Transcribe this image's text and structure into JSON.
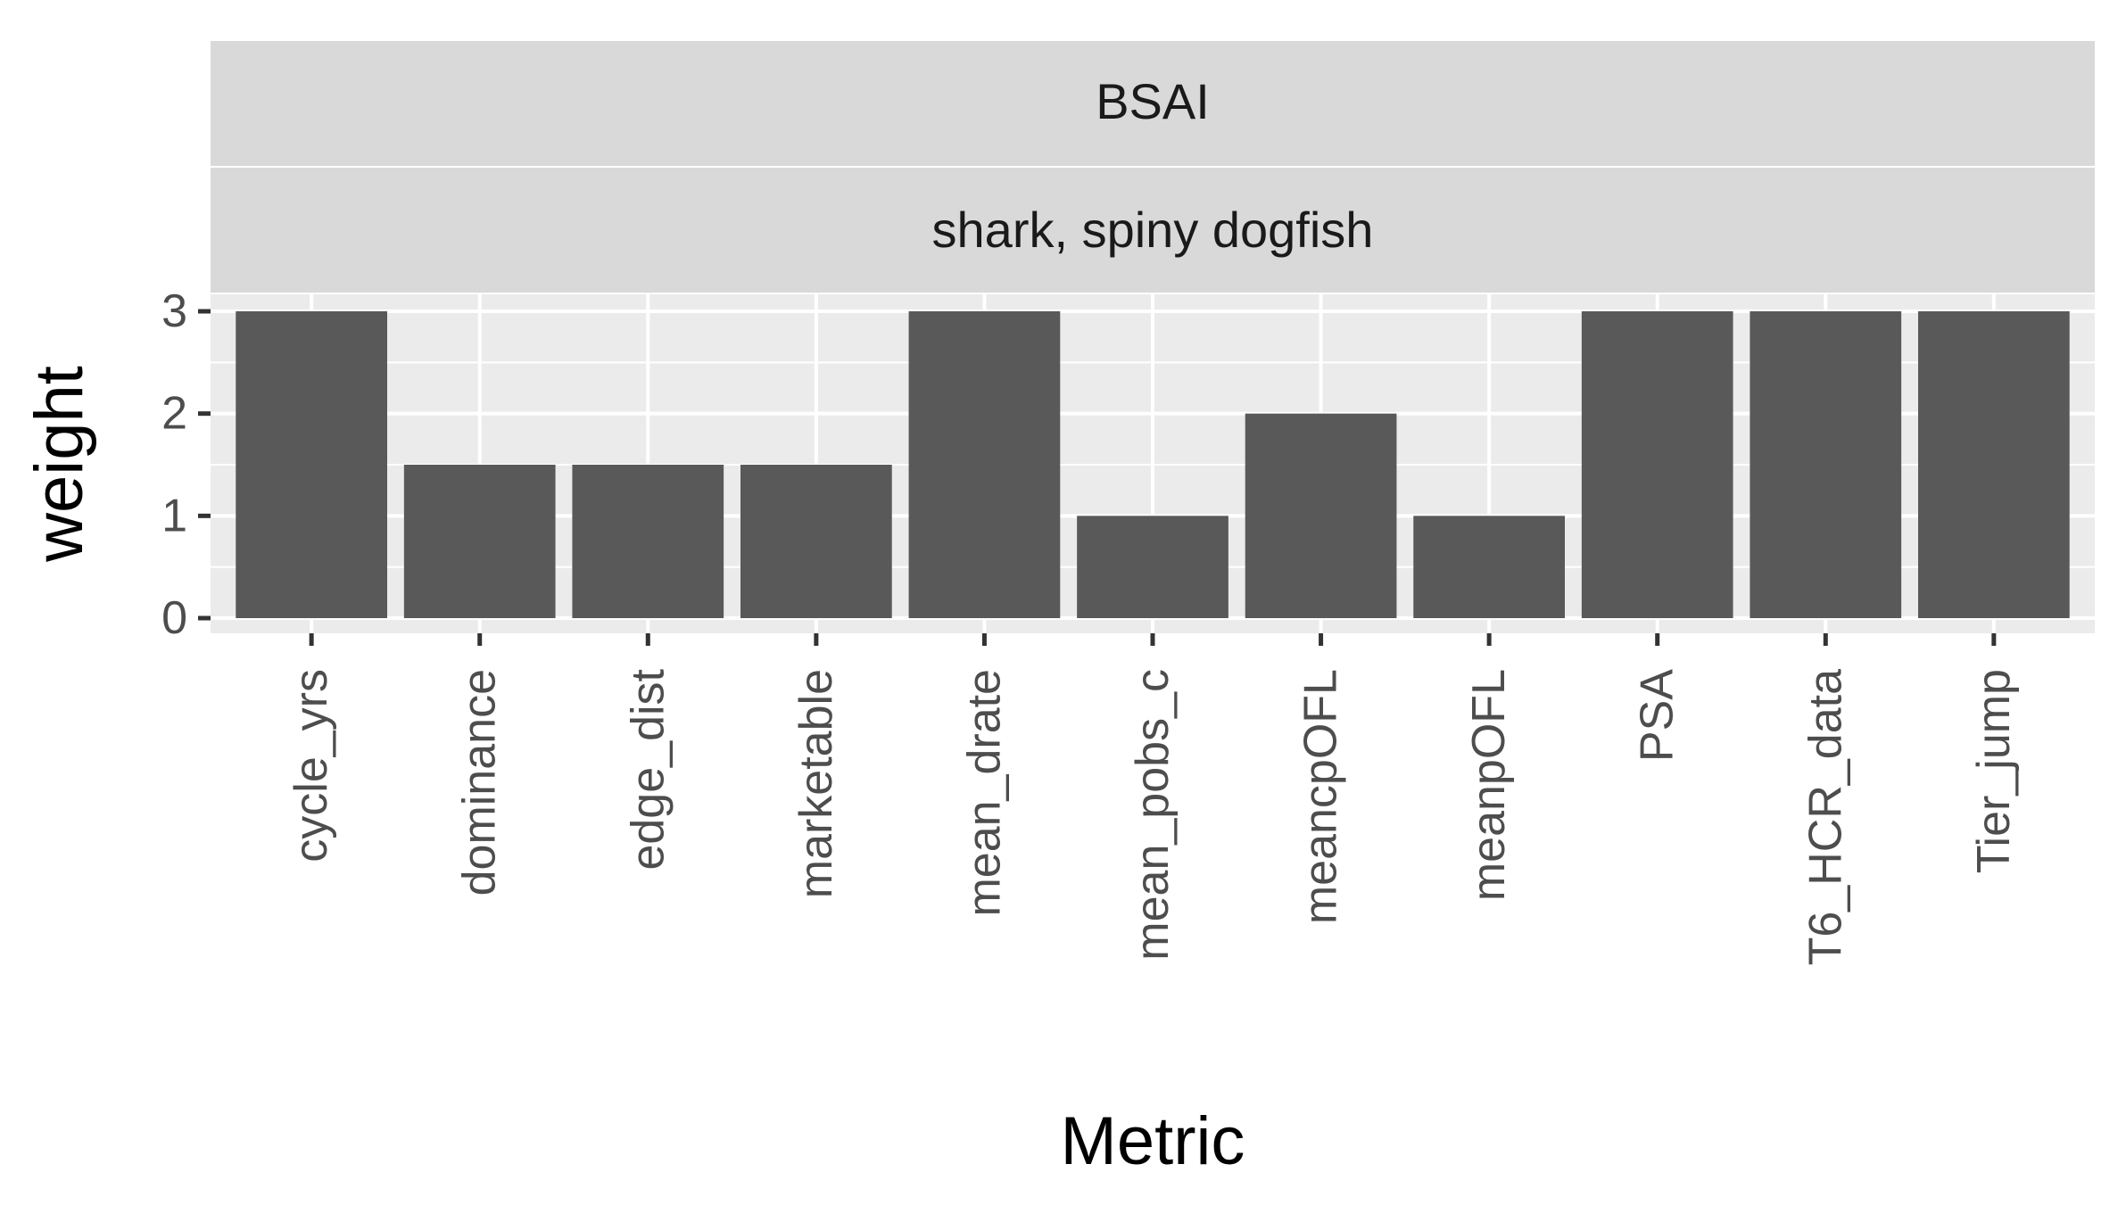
{
  "chart_data": {
    "type": "bar",
    "facet_strips": [
      "BSAI",
      "shark, spiny dogfish"
    ],
    "categories": [
      "cycle_yrs",
      "dominance",
      "edge_dist",
      "marketable",
      "mean_drate",
      "mean_pobs_c",
      "meancpOFL",
      "meanpOFL",
      "PSA",
      "T6_HCR_data",
      "Tier_jump"
    ],
    "values": [
      3,
      1.5,
      1.5,
      1.5,
      3,
      1,
      2,
      1,
      3,
      3,
      3
    ],
    "xlabel": "Metric",
    "ylabel": "weight",
    "ylim": [
      0,
      3
    ],
    "yticks": [
      "0",
      "1",
      "2",
      "3"
    ],
    "grid": true,
    "legend": "none",
    "colors": {
      "bar": "#595959",
      "panel": "#ebebeb",
      "strip": "#d9d9d9",
      "grid": "#ffffff"
    }
  }
}
